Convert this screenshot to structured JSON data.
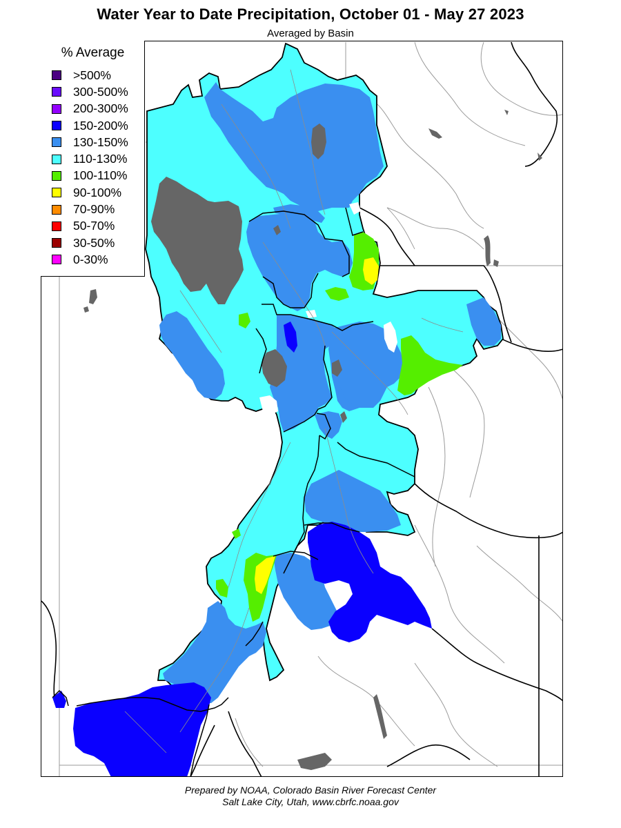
{
  "title": "Water Year to Date Precipitation, October 01  - May 27 2023",
  "subtitle": "Averaged by Basin",
  "legend": {
    "title": "% Average",
    "items": [
      {
        "label": ">500%",
        "color": "#4b0082"
      },
      {
        "label": "300-500%",
        "color": "#6a0dff"
      },
      {
        "label": "200-300%",
        "color": "#9400ff"
      },
      {
        "label": "150-200%",
        "color": "#0a00ff"
      },
      {
        "label": "130-150%",
        "color": "#3a8ff0"
      },
      {
        "label": "110-130%",
        "color": "#4dffff"
      },
      {
        "label": "100-110%",
        "color": "#55ee00"
      },
      {
        "label": "90-100%",
        "color": "#ffff00"
      },
      {
        "label": "70-90%",
        "color": "#ff8c00"
      },
      {
        "label": "50-70%",
        "color": "#ff0000"
      },
      {
        "label": "30-50%",
        "color": "#9b0000"
      },
      {
        "label": "0-30%",
        "color": "#ff00ff"
      }
    ]
  },
  "map": {
    "colors": {
      "above_500": "#4b0082",
      "c300_500": "#6a0dff",
      "c200_300": "#9400ff",
      "c150_200": "#0a00ff",
      "c130_150": "#3a8ff0",
      "c110_130": "#4dffff",
      "c100_110": "#55ee00",
      "c90_100": "#ffff00",
      "lake": "#666666",
      "border": "#000000",
      "river": "#8c8c8c"
    }
  },
  "credits": {
    "line1": "Prepared by NOAA, Colorado Basin River Forecast Center",
    "line2": "Salt Lake City, Utah, www.cbrfc.noaa.gov"
  }
}
